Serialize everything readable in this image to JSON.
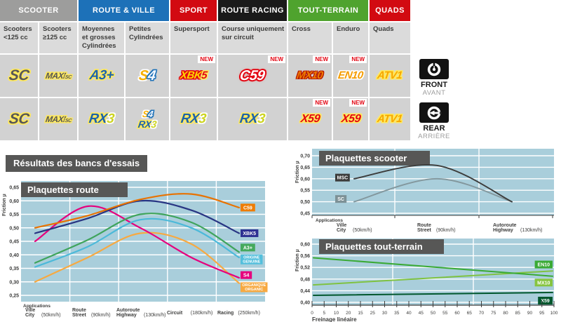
{
  "results_heading": "Résultats des bancs d'essais",
  "front_marker": {
    "label": "FRONT",
    "sub": "AVANT"
  },
  "rear_marker": {
    "label": "REAR",
    "sub": "ARRIÈRE"
  },
  "table": {
    "new_label": "NEW",
    "groups": [
      {
        "label": "SCOOTER",
        "color": "#9d9d9c",
        "span": 2
      },
      {
        "label": "ROUTE & VILLE",
        "color": "#1d71b8",
        "span": 2
      },
      {
        "label": "SPORT",
        "color": "#d20a11",
        "span": 1
      },
      {
        "label": "ROUTE RACING",
        "color": "#1a1a1a",
        "span": 1
      },
      {
        "label": "TOUT-TERRAIN",
        "color": "#4fa32e",
        "span": 2
      },
      {
        "label": "QUADS",
        "color": "#d20a11",
        "span": 1
      }
    ],
    "columns": [
      "Scooters <125 cc",
      "Scooters ≥125 cc",
      "Moyennes et grosses Cylindrées",
      "Petites Cylindrées",
      "Supersport",
      "Course uniquement sur circuit",
      "Cross",
      "Enduro",
      "Quads"
    ],
    "rows": [
      {
        "side": "front",
        "cells": [
          {
            "badges": [
              {
                "fs": 21,
                "parts": [
                  {
                    "t": "SC",
                    "cls": "p-gray ol-y"
                  }
                ]
              }
            ]
          },
          {
            "badges": [
              {
                "fs": 12,
                "parts": [
                  {
                    "t": "MAXI",
                    "cls": "p-gray ol-y"
                  },
                  {
                    "t": "SC",
                    "cls": "p-gray ol-y psub"
                  }
                ]
              }
            ]
          },
          {
            "badges": [
              {
                "fs": 19,
                "parts": [
                  {
                    "t": "A3+",
                    "cls": "p-blue ol-y"
                  }
                ]
              }
            ]
          },
          {
            "badges": [
              {
                "fs": 20,
                "parts": [
                  {
                    "t": "S",
                    "cls": "p-orangeS ol-w"
                  },
                  {
                    "t": "4",
                    "cls": "p-whiteBlue ol-b"
                  }
                ]
              }
            ]
          },
          {
            "new": true,
            "badges": [
              {
                "fs": 15,
                "parts": [
                  {
                    "t": "XBK",
                    "cls": "p-yellowRed ol-r"
                  },
                  {
                    "t": "5",
                    "cls": "p-redYellow ol-y"
                  }
                ]
              }
            ]
          },
          {
            "new": true,
            "badges": [
              {
                "fs": 20,
                "parts": [
                  {
                    "t": "C59",
                    "cls": "p-whiteRed ol-rg"
                  }
                ]
              }
            ]
          },
          {
            "new": true,
            "badges": [
              {
                "fs": 15,
                "parts": [
                  {
                    "t": "MX10",
                    "cls": "p-orangeRed ol-dr"
                  }
                ]
              }
            ]
          },
          {
            "new": true,
            "badges": [
              {
                "fs": 15,
                "parts": [
                  {
                    "t": "EN10",
                    "cls": "p-orangeWhite ol-w"
                  }
                ]
              }
            ]
          },
          {
            "badges": [
              {
                "fs": 15,
                "parts": [
                  {
                    "t": "ATV1",
                    "cls": "p-orangeYellow ol-y"
                  }
                ]
              }
            ]
          }
        ]
      },
      {
        "side": "rear",
        "cells": [
          {
            "badges": [
              {
                "fs": 21,
                "parts": [
                  {
                    "t": "SC",
                    "cls": "p-gray ol-y"
                  }
                ]
              }
            ]
          },
          {
            "badges": [
              {
                "fs": 12,
                "parts": [
                  {
                    "t": "MAXI",
                    "cls": "p-gray ol-y"
                  },
                  {
                    "t": "SC",
                    "cls": "p-gray ol-y psub"
                  }
                ]
              }
            ]
          },
          {
            "badges": [
              {
                "fs": 19,
                "parts": [
                  {
                    "t": "RX",
                    "cls": "p-blue ol-y"
                  },
                  {
                    "t": "3",
                    "cls": "p-yellowGreen ol-w"
                  }
                ]
              }
            ]
          },
          {
            "badges": [
              {
                "fs": 13,
                "parts": [
                  {
                    "t": "S",
                    "cls": "p-orangeS ol-w"
                  },
                  {
                    "t": "4",
                    "cls": "p-whiteBlue ol-b"
                  }
                ]
              },
              {
                "fs": 14,
                "parts": [
                  {
                    "t": "RX",
                    "cls": "p-blue ol-y"
                  },
                  {
                    "t": "3",
                    "cls": "p-yellowGreen ol-w"
                  }
                ]
              }
            ]
          },
          {
            "badges": [
              {
                "fs": 19,
                "parts": [
                  {
                    "t": "RX",
                    "cls": "p-blue ol-y"
                  },
                  {
                    "t": "3",
                    "cls": "p-yellowGreen ol-w"
                  }
                ]
              }
            ]
          },
          {
            "badges": [
              {
                "fs": 19,
                "parts": [
                  {
                    "t": "RX",
                    "cls": "p-blue ol-y"
                  },
                  {
                    "t": "3",
                    "cls": "p-yellowGreen ol-w"
                  }
                ]
              }
            ]
          },
          {
            "new": true,
            "badges": [
              {
                "fs": 16,
                "parts": [
                  {
                    "t": "X59",
                    "cls": "p-redYellow ol-y"
                  }
                ]
              }
            ]
          },
          {
            "new": true,
            "badges": [
              {
                "fs": 16,
                "parts": [
                  {
                    "t": "X59",
                    "cls": "p-redYellow ol-y"
                  }
                ]
              }
            ]
          },
          {
            "badges": [
              {
                "fs": 15,
                "parts": [
                  {
                    "t": "ATV1",
                    "cls": "p-orangeYellow ol-y"
                  }
                ]
              }
            ]
          }
        ]
      }
    ]
  },
  "chart_data": [
    {
      "id": "route",
      "type": "line",
      "title": "Plaquettes route",
      "ylabel": "Friction µ",
      "applications_label": "Applications",
      "ytick_labels": [
        "0,65",
        "0,60",
        "0,55",
        "0,50",
        "0,45",
        "0,40",
        "0,35",
        "0,30",
        "0,25"
      ],
      "ylim": [
        0.25,
        0.65
      ],
      "grid": true,
      "legend_position": "right-of-line-ends",
      "categories": [
        {
          "fr": "Ville",
          "en": "City",
          "speed": "(50km/h)"
        },
        {
          "fr": "Route",
          "en": "Street",
          "speed": "(90km/h)"
        },
        {
          "fr": "Autoroute",
          "en": "Highway",
          "speed": "(130km/h)"
        },
        {
          "fr": "Circuit",
          "speed": "(180km/h)"
        },
        {
          "fr": "Racing",
          "speed": "(250km/h)"
        }
      ],
      "series": [
        {
          "name": "C59",
          "label_lines": [
            "C59"
          ],
          "color": "#e87200",
          "badge": "#ef7c00",
          "values": [
            0.5,
            0.545,
            0.605,
            0.625,
            0.575
          ],
          "badge_v": 0.575
        },
        {
          "name": "XBK5",
          "label_lines": [
            "XBK5"
          ],
          "color": "#283583",
          "badge": "#2e3192",
          "values": [
            0.48,
            0.535,
            0.6,
            0.565,
            0.48
          ],
          "badge_v": 0.48
        },
        {
          "name": "A3+",
          "label_lines": [
            "A3+"
          ],
          "color": "#3fa45c",
          "badge": "#44a95d",
          "values": [
            0.37,
            0.455,
            0.55,
            0.52,
            0.41
          ],
          "badge_v": 0.427
        },
        {
          "name": "ORIGINE GENUINE",
          "label_lines": [
            "ORIGINE",
            "GENUINE"
          ],
          "color": "#4cb9d9",
          "badge": "#54bfdc",
          "values": [
            0.355,
            0.43,
            0.53,
            0.5,
            0.39
          ],
          "badge_v": 0.383
        },
        {
          "name": "S4",
          "label_lines": [
            "S4"
          ],
          "color": "#e5007d",
          "badge": "#e5007d",
          "values": [
            0.45,
            0.58,
            0.5,
            0.39,
            0.315
          ],
          "badge_v": 0.325
        },
        {
          "name": "ORGANIQUE ORGANIC",
          "label_lines": [
            "ORGANIQUE",
            "ORGANIC"
          ],
          "color": "#f7a941",
          "badge": "#f7a941",
          "values": [
            0.3,
            0.39,
            0.48,
            0.44,
            0.295
          ],
          "badge_v": 0.28
        }
      ]
    },
    {
      "id": "scooter",
      "type": "line",
      "title": "Plaquettes scooter",
      "ylabel": "Friction µ",
      "applications_label": "Applications",
      "ytick_labels": [
        "0,70",
        "0,65",
        "0,60",
        "0,55",
        "0,50",
        "0,45"
      ],
      "ylim": [
        0.45,
        0.7
      ],
      "grid": true,
      "legend_position": "left-of-line-starts",
      "categories": [
        {
          "fr": "Ville",
          "en": "City",
          "speed": "(50km/h)"
        },
        {
          "fr": "Route",
          "en": "Street",
          "speed": "(90km/h)"
        },
        {
          "fr": "Autoroute",
          "en": "Highway",
          "speed": "(130km/h)"
        }
      ],
      "series": [
        {
          "name": "MSC",
          "label_lines": [
            "MSC"
          ],
          "color": "#3c3c3b",
          "badge": "#3c3c3b",
          "values": [
            0.6,
            0.658,
            0.5
          ],
          "badge_v": 0.605
        },
        {
          "name": "SC",
          "label_lines": [
            "SC"
          ],
          "color": "#83979d",
          "badge": "#7d9196",
          "values": [
            0.5,
            0.6,
            0.5
          ],
          "badge_v": 0.512
        }
      ]
    },
    {
      "id": "terrain",
      "type": "line",
      "title": "Plaquettes tout-terrain",
      "ylabel": "Friction µ",
      "xlabel": "Freinage linéaire",
      "ytick_labels": [
        "0,60",
        "0,56",
        "0,52",
        "0,48",
        "0,44",
        "0,40"
      ],
      "ylim": [
        0.4,
        0.6
      ],
      "xlim": [
        0,
        100
      ],
      "grid": true,
      "legend_position": "right-edge",
      "xtick_labels": [
        "0",
        "5",
        "10",
        "20",
        "15",
        "25",
        "30",
        "35",
        "40",
        "45",
        "50",
        "55",
        "60",
        "65",
        "70",
        "75",
        "80",
        "85",
        "90",
        "95",
        "100"
      ],
      "series": [
        {
          "name": "EN10",
          "label_lines": [
            "EN10"
          ],
          "color": "#3aaa35",
          "badge": "#3aaa35",
          "x": [
            0,
            100
          ],
          "values": [
            0.553,
            0.49
          ],
          "badge_v": 0.53
        },
        {
          "name": "MX10",
          "label_lines": [
            "MX10"
          ],
          "color": "#7fc241",
          "badge": "#86c440",
          "x": [
            0,
            100
          ],
          "values": [
            0.46,
            0.508
          ],
          "badge_v": 0.468
        },
        {
          "name": "X59",
          "label_lines": [
            "X59"
          ],
          "color": "#00572d",
          "badge": "#00572d",
          "x": [
            0,
            100
          ],
          "values": [
            0.424,
            0.434
          ],
          "badge_v": 0.406
        }
      ]
    }
  ]
}
